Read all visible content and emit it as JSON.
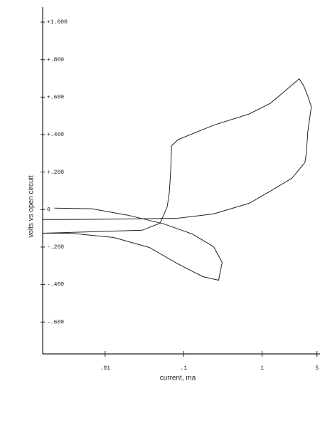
{
  "chart_data": {
    "type": "line",
    "x_label": "current, ma",
    "y_label": "volts vs open circuit",
    "xscale": "log",
    "xlim": [
      0.0016,
      5.7
    ],
    "ylim": [
      -0.77,
      1.08
    ],
    "xticks": [
      {
        "value": 0.01,
        "label": ".01"
      },
      {
        "value": 0.1,
        "label": ".1"
      },
      1,
      {
        "value": 5,
        "label": "5"
      }
    ],
    "yticks": [
      {
        "value": 1,
        "label": "+1.000"
      },
      {
        "value": 0.8,
        "label": "+.800"
      },
      {
        "value": 0.6,
        "label": "+.600"
      },
      {
        "value": 0.4,
        "label": "+.400"
      },
      {
        "value": 0.2,
        "label": "+.200"
      },
      0,
      {
        "value": -0.2,
        "label": "-.200"
      },
      {
        "value": -0.4,
        "label": "-.400"
      },
      {
        "value": -0.6,
        "label": "-.600"
      }
    ],
    "series": [
      {
        "color": "#222222",
        "x": [
          0.00226,
          0.00686,
          0.0195,
          0.0556,
          0.1285,
          0.241,
          0.31,
          0.279,
          0.176,
          0.0846,
          0.0366,
          0.0129,
          0.00366,
          0.00158,
          null,
          0.00158,
          0.0297,
          0.0501,
          0.0618,
          0.0658,
          0.0686,
          0.07,
          0.0846,
          0.241,
          0.686,
          1.285,
          2.97,
          3.37,
          3.82,
          4.24,
          3.82,
          3.66,
          3.51,
          2.41,
          1.285,
          0.686,
          0.241,
          0.0846,
          0.0195,
          0.00366,
          0.00158
        ],
        "values": [
          0.008,
          0.004,
          -0.03,
          -0.076,
          -0.13,
          -0.198,
          -0.282,
          -0.377,
          -0.358,
          -0.29,
          -0.202,
          -0.149,
          -0.126,
          -0.126,
          null,
          -0.126,
          -0.11,
          -0.072,
          0.015,
          0.091,
          0.206,
          0.339,
          0.373,
          0.45,
          0.51,
          0.568,
          0.697,
          0.663,
          0.606,
          0.549,
          0.415,
          0.301,
          0.251,
          0.168,
          0.099,
          0.034,
          -0.023,
          -0.046,
          -0.05,
          -0.053,
          -0.053
        ]
      }
    ]
  }
}
